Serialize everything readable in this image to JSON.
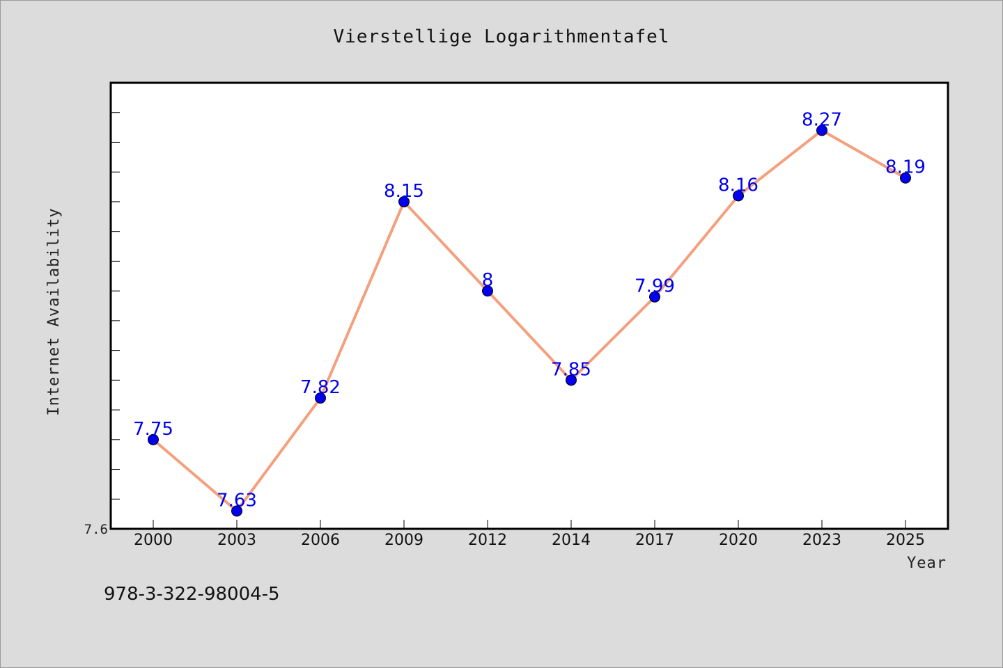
{
  "chart_data": {
    "type": "line",
    "title": "Vierstellige Logarithmentafel",
    "xlabel": "Year",
    "ylabel": "Internet Availability",
    "categories": [
      "2000",
      "2003",
      "2006",
      "2009",
      "2012",
      "2014",
      "2017",
      "2020",
      "2023",
      "2025"
    ],
    "series": [
      {
        "values": [
          7.75,
          7.63,
          7.82,
          8.15,
          8,
          7.85,
          7.99,
          8.16,
          8.27,
          8.19
        ],
        "labels": [
          "7.75",
          "7.63",
          "7.82",
          "8.15",
          "8",
          "7.85",
          "7.99",
          "8.16",
          "8.27",
          "8.19"
        ],
        "line_color": "#f4a07e",
        "marker_color": "#0000ee"
      }
    ],
    "ylim": [
      7.6,
      8.35
    ],
    "yticks": [
      "7.6"
    ],
    "grid": false,
    "legend": "none"
  },
  "footer_text": "978-3-322-98004-5"
}
